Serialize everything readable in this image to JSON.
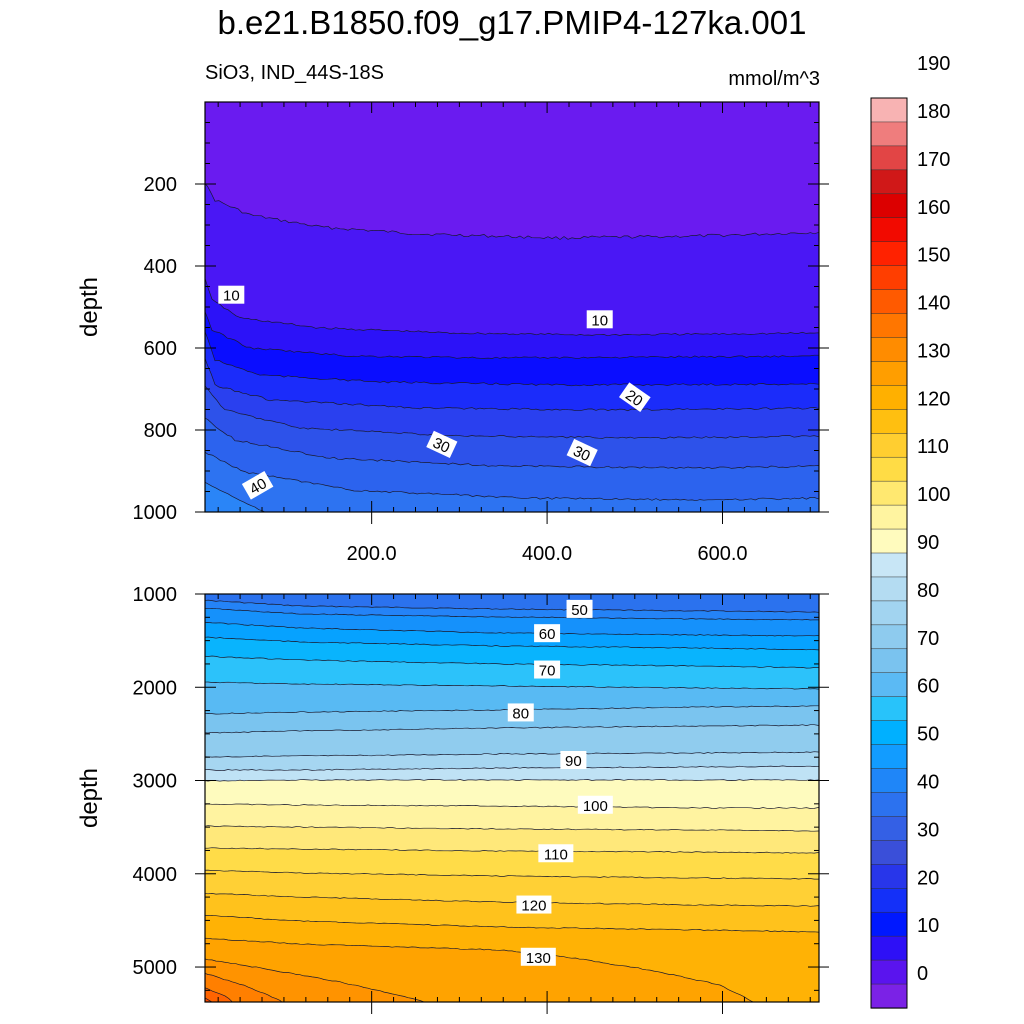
{
  "title": "b.e21.B1850.f09_g17.PMIP4-127ka.001",
  "subtitle_left": "SiO3, IND_44S-18S",
  "subtitle_right": "mmol/m^3",
  "chart_data": [
    {
      "type": "contour",
      "name": "upper panel",
      "xlabel": "",
      "ylabel": "depth",
      "xlim": [
        10,
        710
      ],
      "ylim": [
        1000,
        0
      ],
      "xticks": [
        200,
        400,
        600
      ],
      "xticklabels": [
        "200.0",
        "400.0",
        "600.0"
      ],
      "yticks": [
        200,
        400,
        600,
        800,
        1000
      ],
      "yticklabels": [
        "200",
        "400",
        "600",
        "800",
        "1000"
      ],
      "contour_labels": [
        {
          "text": "10",
          "x": 40,
          "y": 470
        },
        {
          "text": "10",
          "x": 460,
          "y": 530
        },
        {
          "text": "20",
          "x": 500,
          "y": 720
        },
        {
          "text": "30",
          "x": 280,
          "y": 835
        },
        {
          "text": "30",
          "x": 440,
          "y": 855
        },
        {
          "text": "40",
          "x": 70,
          "y": 935
        }
      ]
    },
    {
      "type": "contour",
      "name": "lower panel",
      "xlabel": "",
      "ylabel": "depth",
      "xlim": [
        10,
        710
      ],
      "ylim": [
        5375,
        1000
      ],
      "yticks": [
        1000,
        2000,
        3000,
        4000,
        5000
      ],
      "yticklabels": [
        "1000",
        "2000",
        "3000",
        "4000",
        "5000"
      ],
      "contour_labels": [
        {
          "text": "50",
          "x": 437,
          "y": 1160
        },
        {
          "text": "60",
          "x": 400,
          "y": 1420
        },
        {
          "text": "70",
          "x": 400,
          "y": 1810
        },
        {
          "text": "80",
          "x": 370,
          "y": 2270
        },
        {
          "text": "90",
          "x": 430,
          "y": 2780
        },
        {
          "text": "100",
          "x": 455,
          "y": 3260
        },
        {
          "text": "110",
          "x": 410,
          "y": 3780
        },
        {
          "text": "120",
          "x": 385,
          "y": 4330
        },
        {
          "text": "130",
          "x": 390,
          "y": 4890
        }
      ]
    }
  ],
  "colorbar": {
    "labels": [
      "0",
      "10",
      "20",
      "30",
      "40",
      "50",
      "60",
      "70",
      "80",
      "90",
      "100",
      "110",
      "120",
      "130",
      "140",
      "150",
      "160",
      "170",
      "180",
      "190"
    ],
    "colors_top_to_bottom": [
      "#f8b3b3",
      "#ef7d7d",
      "#e24545",
      "#d01818",
      "#dc0000",
      "#f20a00",
      "#ff2200",
      "#ff3e00",
      "#ff5a00",
      "#ff7600",
      "#ff8c00",
      "#ff9e00",
      "#ffb000",
      "#ffbf10",
      "#ffce30",
      "#ffdc45",
      "#ffe870",
      "#fff4a0",
      "#fffbbe",
      "#c8e6f6",
      "#b4dcf2",
      "#a2d4f0",
      "#8ecbee",
      "#7ac3ef",
      "#5bbaf4",
      "#28c3fa",
      "#00b0ff",
      "#129cff",
      "#1f86f8",
      "#2c72ef",
      "#3460e5",
      "#3a4fd9",
      "#2836ea",
      "#1430f8",
      "#0018ff",
      "#2e10f6",
      "#5a14ee",
      "#7b22e6"
    ]
  }
}
